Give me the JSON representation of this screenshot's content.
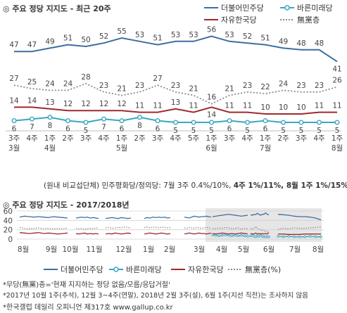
{
  "top": {
    "title": "◎ 주요 정당 지지도 - 최근 20주",
    "legend": [
      {
        "name": "더불어민주당",
        "color": "#3e6f9f",
        "style": "line"
      },
      {
        "name": "바른미래당",
        "color": "#3ba6c2",
        "style": "marker"
      },
      {
        "name": "자유한국당",
        "color": "#9e2a2f",
        "style": "line"
      },
      {
        "name": "無黨층",
        "color": "#8a8a8a",
        "style": "dotted"
      }
    ],
    "subnote_parts": [
      "(원내 비교섭단체) 민주평화당/정의당: 7월 3주 0.4%/10%, ",
      "4주 1%/11%, 8월 1주 1%/15%"
    ]
  },
  "bottom": {
    "title": "◎ 주요 정당 지지도 - 2017/2018년",
    "legend": [
      {
        "name": "더불어민주당",
        "color": "#3e6f9f",
        "style": "line"
      },
      {
        "name": "바른미래당",
        "color": "#3ba6c2",
        "style": "marker"
      },
      {
        "name": "자유한국당",
        "color": "#9e2a2f",
        "style": "line"
      },
      {
        "name": "無黨층(%)",
        "color": "#8a8a8a",
        "style": "dotted"
      }
    ]
  },
  "notes": [
    "*무당(無黨)층='현재 지지하는 정당 없음/모름/응답거절'",
    "*2017년 10월 1주(추석), 12월 3~4주(연말), 2018년 2월 3주(설), 6월 1주(지선 직전)는 조사하지 않음",
    "*한국갤럽 데일리 오피니언 제317호 www.gallup.co.kr"
  ],
  "chart_data": [
    {
      "type": "line",
      "title": "주요 정당 지지도 - 최근 20주",
      "categories": [
        "3주|3월",
        "4주",
        "1주|4월",
        "2주",
        "3주",
        "4주",
        "1주|5월",
        "2주",
        "3주",
        "4주",
        "5주",
        "1주|6월",
        "3주",
        "4주",
        "1주|7월",
        "2주",
        "3주",
        "4주",
        "1주|8월"
      ],
      "ylim": [
        0,
        60
      ],
      "series": [
        {
          "name": "더불어민주당",
          "color": "#3e6f9f",
          "values": [
            47,
            47,
            49,
            51,
            50,
            52,
            55,
            53,
            51,
            53,
            53,
            56,
            53,
            52,
            51,
            49,
            48,
            48,
            41
          ]
        },
        {
          "name": "無黨층",
          "color": "#8a8a8a",
          "values": [
            27,
            25,
            24,
            24,
            28,
            23,
            21,
            23,
            27,
            23,
            21,
            16,
            21,
            23,
            22,
            24,
            23,
            23,
            26
          ]
        },
        {
          "name": "자유한국당",
          "color": "#9e2a2f",
          "values": [
            14,
            14,
            13,
            12,
            12,
            12,
            12,
            11,
            11,
            13,
            11,
            14,
            11,
            11,
            10,
            10,
            10,
            11,
            11
          ]
        },
        {
          "name": "바른미래당",
          "color": "#3ba6c2",
          "values": [
            6,
            7,
            8,
            6,
            5,
            7,
            6,
            8,
            6,
            5,
            5,
            5,
            6,
            5,
            6,
            5,
            5,
            5,
            5
          ]
        }
      ]
    },
    {
      "type": "line",
      "title": "주요 정당 지지도 - 2017/2018년",
      "categories": [
        "8월",
        "9월",
        "10월",
        "11월",
        "12월",
        "1월",
        "2월",
        "3월",
        "4월",
        "5월",
        "6월",
        "7월",
        "8월"
      ],
      "ylim": [
        0,
        60
      ],
      "yticks": [
        0,
        20,
        40,
        60
      ],
      "series": [
        {
          "name": "더불어민주당",
          "color": "#3e6f9f",
          "segments": [
            [
              47,
              49,
              48,
              47,
              48,
              47,
              46,
              48,
              47,
              46,
              45
            ],
            [
              45,
              46,
              47,
              46,
              47,
              45,
              46,
              45,
              44
            ],
            [
              44,
              45,
              46,
              45,
              44,
              46,
              45,
              44,
              45
            ],
            [
              44,
              46,
              45,
              47,
              46,
              47,
              46,
              47,
              45,
              46
            ],
            [
              47,
              46,
              45,
              47,
              49,
              48,
              47,
              48,
              48,
              49,
              48,
              47
            ],
            [
              48,
              49,
              50,
              51,
              52,
              53,
              52,
              51,
              50,
              49,
              50,
              51
            ],
            [
              52,
              51,
              53,
              52,
              55,
              53,
              51,
              53,
              53,
              56,
              53,
              52
            ],
            [
              53,
              52,
              51,
              49,
              48,
              48,
              47,
              45,
              41
            ]
          ]
        },
        {
          "name": "無黨층(%)",
          "color": "#8a8a8a",
          "segments": [
            [
              25,
              23,
              22,
              23,
              24,
              22,
              23,
              22,
              23,
              22,
              24
            ],
            [
              23,
              22,
              23,
              21,
              22,
              23,
              22,
              24,
              23
            ],
            [
              24,
              25,
              23,
              24,
              25,
              24,
              26,
              25,
              24
            ],
            [
              25,
              26,
              24,
              26,
              25,
              24,
              26,
              25,
              24,
              25
            ],
            [
              24,
              23,
              25,
              24,
              23,
              25,
              24,
              23,
              24,
              25,
              24,
              23
            ],
            [
              23,
              22,
              24,
              23,
              25,
              24,
              22,
              23,
              24,
              21,
              23,
              22
            ],
            [
              23,
              21,
              23,
              27,
              23,
              21,
              20,
              19,
              18,
              17,
              16,
              17
            ],
            [
              21,
              23,
              22,
              24,
              23,
              23,
              24,
              25,
              26
            ]
          ]
        },
        {
          "name": "자유한국당",
          "color": "#9e2a2f",
          "segments": [
            [
              14,
              13,
              12,
              13,
              14,
              12,
              13,
              12,
              11,
              12,
              13
            ],
            [
              12,
              11,
              12,
              13,
              11,
              12,
              11,
              12,
              11
            ],
            [
              11,
              12,
              11,
              13,
              12,
              11,
              12,
              13,
              12
            ],
            [
              11,
              12,
              13,
              12,
              11,
              12,
              13,
              12,
              11,
              12
            ],
            [
              11,
              12,
              13,
              12,
              11,
              12,
              13,
              12,
              12,
              11,
              12,
              13
            ],
            [
              12,
              11,
              12,
              13,
              12,
              11,
              12,
              11,
              12,
              13,
              12,
              11
            ],
            [
              12,
              11,
              11,
              13,
              11,
              12,
              11,
              12,
              11,
              12,
              11,
              14
            ],
            [
              11,
              11,
              10,
              10,
              10,
              11,
              11,
              11,
              11
            ]
          ]
        },
        {
          "name": "바른미래당",
          "color": "#3ba6c2",
          "segments": [
            [],
            [],
            [],
            [],
            [],
            [
              9,
              8,
              7,
              8,
              9,
              8,
              7,
              8,
              7,
              8,
              7,
              6
            ],
            [
              7,
              8,
              6,
              5,
              7,
              6,
              8,
              6,
              5,
              5,
              5,
              5
            ],
            [
              6,
              5,
              6,
              5,
              5,
              5,
              6,
              5,
              5
            ]
          ]
        }
      ]
    }
  ]
}
